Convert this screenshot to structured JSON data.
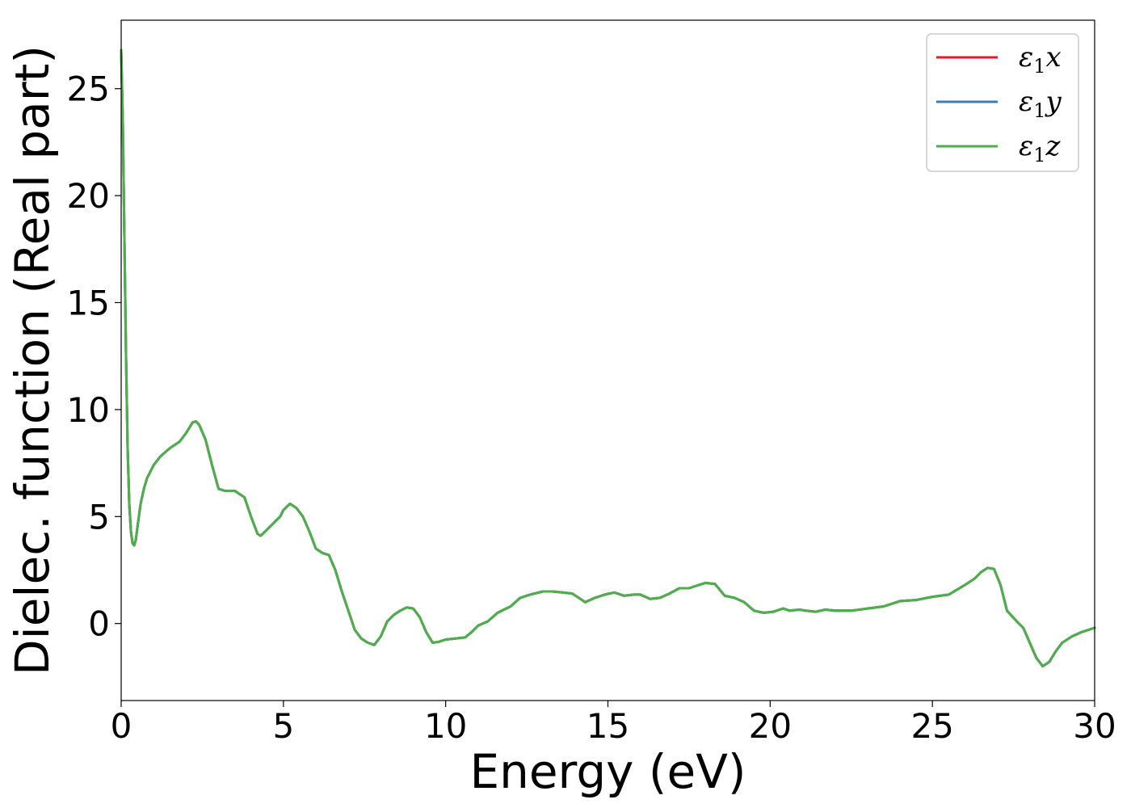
{
  "chart_data": {
    "type": "line",
    "xlabel": "Energy (eV)",
    "ylabel": "Dielec. function (Real part)",
    "xlim": [
      0,
      30
    ],
    "ylim": [
      -3.6,
      28.2
    ],
    "xticks": [
      0,
      5,
      10,
      15,
      20,
      25,
      30
    ],
    "yticks": [
      0,
      5,
      10,
      15,
      20,
      25
    ],
    "grid": false,
    "legend_position": "top-right",
    "series": [
      {
        "name": "ε1x",
        "label_base": "ε",
        "label_sub": "1",
        "label_var": "x",
        "color": "#e41a1c"
      },
      {
        "name": "ε1y",
        "label_base": "ε",
        "label_sub": "1",
        "label_var": "y",
        "color": "#377eb8"
      },
      {
        "name": "ε1z",
        "label_base": "ε",
        "label_sub": "1",
        "label_var": "z",
        "color": "#4daf4a"
      }
    ],
    "x": [
      0,
      0.05,
      0.1,
      0.15,
      0.2,
      0.25,
      0.3,
      0.35,
      0.4,
      0.45,
      0.5,
      0.6,
      0.7,
      0.8,
      1.0,
      1.2,
      1.5,
      1.8,
      2.0,
      2.2,
      2.3,
      2.4,
      2.6,
      2.8,
      3.0,
      3.2,
      3.5,
      3.8,
      4.0,
      4.2,
      4.3,
      4.5,
      4.7,
      4.9,
      5.0,
      5.2,
      5.4,
      5.6,
      5.8,
      6.0,
      6.2,
      6.4,
      6.6,
      6.8,
      7.0,
      7.2,
      7.4,
      7.6,
      7.8,
      8.0,
      8.2,
      8.4,
      8.6,
      8.8,
      9.0,
      9.2,
      9.4,
      9.6,
      9.8,
      10.0,
      10.3,
      10.6,
      10.8,
      11.0,
      11.3,
      11.6,
      12.0,
      12.3,
      12.6,
      13.0,
      13.3,
      13.6,
      13.9,
      14.1,
      14.3,
      14.6,
      14.9,
      15.2,
      15.5,
      15.8,
      16.0,
      16.3,
      16.6,
      16.9,
      17.2,
      17.5,
      17.8,
      18.0,
      18.3,
      18.6,
      18.9,
      19.2,
      19.5,
      19.8,
      20.1,
      20.4,
      20.6,
      20.9,
      21.1,
      21.4,
      21.7,
      22.0,
      22.5,
      23.0,
      23.5,
      24.0,
      24.5,
      25.0,
      25.5,
      26.0,
      26.3,
      26.5,
      26.7,
      26.9,
      27.1,
      27.3,
      27.6,
      27.8,
      28.0,
      28.2,
      28.4,
      28.6,
      28.8,
      29.0,
      29.3,
      29.6,
      30.0
    ],
    "y": [
      26.8,
      23.5,
      18.0,
      12.5,
      8.2,
      5.6,
      4.3,
      3.75,
      3.65,
      3.9,
      4.5,
      5.6,
      6.3,
      6.8,
      7.4,
      7.8,
      8.2,
      8.5,
      8.9,
      9.4,
      9.45,
      9.3,
      8.6,
      7.4,
      6.3,
      6.2,
      6.2,
      5.9,
      5.0,
      4.2,
      4.1,
      4.4,
      4.7,
      5.0,
      5.3,
      5.6,
      5.4,
      5.0,
      4.3,
      3.5,
      3.3,
      3.2,
      2.5,
      1.5,
      0.6,
      -0.3,
      -0.7,
      -0.9,
      -1.0,
      -0.6,
      0.1,
      0.4,
      0.6,
      0.75,
      0.7,
      0.3,
      -0.4,
      -0.9,
      -0.85,
      -0.75,
      -0.7,
      -0.65,
      -0.4,
      -0.1,
      0.1,
      0.5,
      0.8,
      1.2,
      1.35,
      1.5,
      1.5,
      1.45,
      1.4,
      1.2,
      1.0,
      1.2,
      1.35,
      1.45,
      1.3,
      1.35,
      1.35,
      1.15,
      1.2,
      1.4,
      1.65,
      1.65,
      1.8,
      1.9,
      1.85,
      1.3,
      1.2,
      1.0,
      0.6,
      0.5,
      0.55,
      0.7,
      0.6,
      0.65,
      0.6,
      0.55,
      0.65,
      0.6,
      0.6,
      0.7,
      0.8,
      1.05,
      1.1,
      1.25,
      1.35,
      1.8,
      2.1,
      2.4,
      2.6,
      2.55,
      1.8,
      0.6,
      0.1,
      -0.2,
      -0.9,
      -1.6,
      -2.0,
      -1.8,
      -1.3,
      -0.9,
      -0.6,
      -0.4,
      -0.2
    ]
  }
}
